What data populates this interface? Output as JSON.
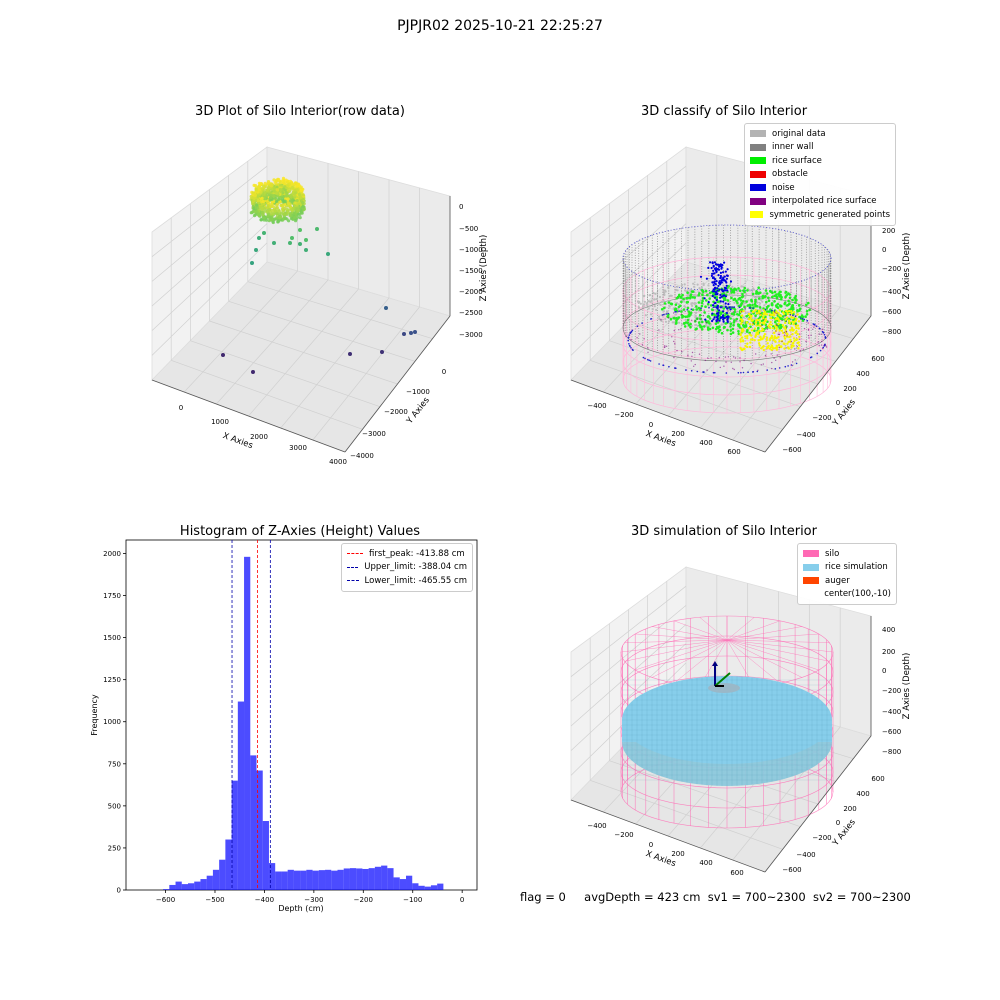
{
  "figure": {
    "suptitle": "PJPJR02 2025-10-21 22:25:27"
  },
  "panels": {
    "raw": {
      "title": "3D Plot of Silo Interior(row data)",
      "xlabel": "X Axies",
      "ylabel": "Y Axies",
      "zlabel": "Z Axies (Depth)",
      "xticks": [
        "0",
        "1000",
        "2000",
        "3000",
        "4000"
      ],
      "yticks": [
        "0",
        "−1000",
        "−2000",
        "−3000",
        "−4000"
      ],
      "zticks": [
        "0",
        "−500",
        "−1000",
        "−1500",
        "−2000",
        "−2500",
        "−3000"
      ]
    },
    "classify": {
      "title": "3D classify of Silo Interior",
      "xlabel": "X Axies",
      "ylabel": "Y Axies",
      "zlabel": "Z Axies (Depth)",
      "xticks": [
        "−400",
        "−200",
        "0",
        "200",
        "400",
        "600"
      ],
      "yticks": [
        "600",
        "400",
        "200",
        "0",
        "−200",
        "−400",
        "−600"
      ],
      "zticks": [
        "200",
        "0",
        "−200",
        "−400",
        "−600",
        "−800"
      ],
      "legend": [
        {
          "label": "original data",
          "color": "#b3b3b3"
        },
        {
          "label": "inner wall",
          "color": "#808080"
        },
        {
          "label": "rice surface",
          "color": "#00ee00"
        },
        {
          "label": "obstacle",
          "color": "#ee0000"
        },
        {
          "label": "noise",
          "color": "#0000dd"
        },
        {
          "label": "interpolated rice surface",
          "color": "#800080"
        },
        {
          "label": "symmetric generated points",
          "color": "#ffff00"
        }
      ]
    },
    "histogram": {
      "title": "Histogram of Z-Axies (Height) Values",
      "xlabel": "Depth (cm)",
      "ylabel": "Frequency",
      "legend": [
        {
          "label": "first_peak: -413.88 cm",
          "color": "#ff0000"
        },
        {
          "label": "Upper_limit: -388.04 cm",
          "color": "#0000aa"
        },
        {
          "label": "Lower_limit: -465.55 cm",
          "color": "#0000aa"
        }
      ]
    },
    "simulation": {
      "title": "3D simulation of Silo Interior",
      "xlabel": "X Axies",
      "ylabel": "Y Axies",
      "zlabel": "Z Axies (Depth)",
      "xticks": [
        "−400",
        "−200",
        "0",
        "200",
        "400",
        "600"
      ],
      "yticks": [
        "600",
        "400",
        "200",
        "0",
        "−200",
        "−400",
        "−600"
      ],
      "zticks": [
        "400",
        "200",
        "0",
        "−200",
        "−400",
        "−600",
        "−800"
      ],
      "legend": [
        {
          "label": "silo",
          "color": "#ff69b4"
        },
        {
          "label": "rice simulation",
          "color": "#87ceeb"
        },
        {
          "label": "auger",
          "color": "#ff4500"
        },
        {
          "label": "center(100,-10)",
          "color": ""
        }
      ]
    }
  },
  "footer": {
    "flag": "flag = 0",
    "avg_depth": "avgDepth = 423 cm",
    "sv1": "sv1 = 700~2300",
    "sv2": "sv2 = 700~2300"
  },
  "chart_data": [
    {
      "type": "scatter",
      "title": "3D Plot of Silo Interior(row data)",
      "xlabel": "X Axies",
      "ylabel": "Y Axies",
      "zlabel": "Z Axies (Depth)",
      "xlim": [
        -500,
        4000
      ],
      "ylim": [
        -4000,
        500
      ],
      "zlim": [
        -3300,
        200
      ],
      "colormap": "viridis",
      "series": [
        {
          "values": [
            {
              "x": 400,
              "y": 300,
              "z": -450
            },
            {
              "x": 600,
              "y": 200,
              "z": -700
            },
            {
              "x": 800,
              "y": 100,
              "z": -900
            },
            {
              "x": 300,
              "y": -200,
              "z": -1100
            },
            {
              "x": 1000,
              "y": -100,
              "z": -1000
            },
            {
              "x": 200,
              "y": 0,
              "z": -1400
            },
            {
              "x": 3500,
              "y": -1500,
              "z": -2300
            },
            {
              "x": 3300,
              "y": -2200,
              "z": -2900
            },
            {
              "x": 3700,
              "y": -2000,
              "z": -2950
            },
            {
              "x": 600,
              "y": -3600,
              "z": -3000
            },
            {
              "x": 1200,
              "y": -3800,
              "z": -3100
            },
            {
              "x": 3000,
              "y": -2700,
              "z": -3000
            },
            {
              "x": 3500,
              "y": -2500,
              "z": -3000
            }
          ]
        }
      ]
    },
    {
      "type": "scatter",
      "title": "3D classify of Silo Interior",
      "xlabel": "X Axies",
      "ylabel": "Y Axies",
      "zlabel": "Z Axies (Depth)",
      "xlim": [
        -500,
        700
      ],
      "ylim": [
        -700,
        700
      ],
      "zlim": [
        -900,
        300
      ],
      "series": [
        {
          "name": "original data"
        },
        {
          "name": "inner wall"
        },
        {
          "name": "rice surface"
        },
        {
          "name": "obstacle"
        },
        {
          "name": "noise"
        },
        {
          "name": "interpolated rice surface"
        },
        {
          "name": "symmetric generated points"
        }
      ]
    },
    {
      "type": "bar",
      "title": "Histogram of Z-Axies (Height) Values",
      "xlabel": "Depth (cm)",
      "ylabel": "Frequency",
      "xlim": [
        -680,
        30
      ],
      "ylim": [
        0,
        2080
      ],
      "xticks": [
        -600,
        -500,
        -400,
        -300,
        -200,
        -100,
        0
      ],
      "yticks": [
        0,
        250,
        500,
        750,
        1000,
        1250,
        1500,
        1750,
        2000
      ],
      "bin_width": 12.6,
      "bin_start": -605,
      "values": [
        5,
        30,
        50,
        35,
        40,
        50,
        65,
        85,
        120,
        180,
        300,
        650,
        1120,
        1980,
        800,
        710,
        410,
        160,
        110,
        110,
        120,
        115,
        115,
        120,
        115,
        118,
        120,
        115,
        120,
        128,
        130,
        128,
        125,
        130,
        138,
        145,
        130,
        75,
        65,
        85,
        40,
        25,
        20,
        28,
        38
      ],
      "vlines": [
        {
          "x": -413.88,
          "label": "first_peak: -413.88 cm",
          "color": "#ff0000"
        },
        {
          "x": -388.04,
          "label": "Upper_limit: -388.04 cm",
          "color": "#0000aa"
        },
        {
          "x": -465.55,
          "label": "Lower_limit: -465.55 cm",
          "color": "#0000aa"
        }
      ],
      "legend_position": "top-right"
    },
    {
      "type": "area",
      "title": "3D simulation of Silo Interior",
      "xlabel": "X Axies",
      "ylabel": "Y Axies",
      "zlabel": "Z Axies (Depth)",
      "xlim": [
        -500,
        700
      ],
      "ylim": [
        -700,
        700
      ],
      "zlim": [
        -900,
        450
      ],
      "series": [
        {
          "name": "silo"
        },
        {
          "name": "rice simulation"
        },
        {
          "name": "auger"
        },
        {
          "name": "center(100,-10)"
        }
      ]
    }
  ]
}
